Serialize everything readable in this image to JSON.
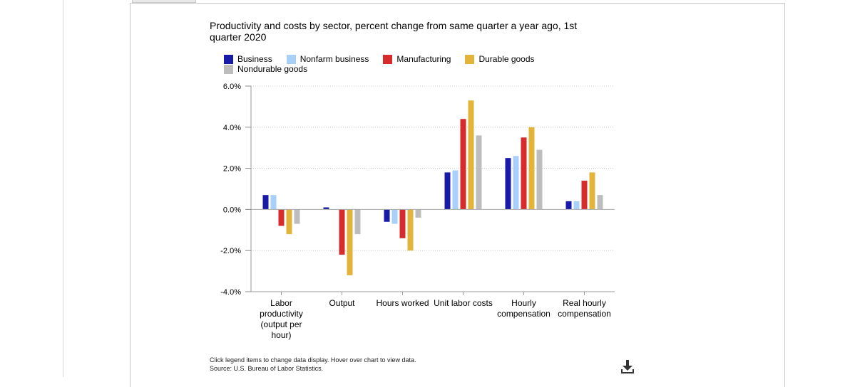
{
  "chart_data": {
    "type": "bar",
    "title": "Productivity and costs by sector, percent change from same quarter a year ago, 1st quarter 2020",
    "categories": [
      [
        "Labor",
        "productivity",
        "(output per",
        "hour)"
      ],
      [
        "Output"
      ],
      [
        "Hours worked"
      ],
      [
        "Unit labor costs"
      ],
      [
        "Hourly",
        "compensation"
      ],
      [
        "Real hourly",
        "compensation"
      ]
    ],
    "series": [
      {
        "name": "Business",
        "color": "#1a1aa8",
        "values": [
          0.7,
          0.1,
          -0.6,
          1.8,
          2.5,
          0.4
        ]
      },
      {
        "name": "Nonfarm business",
        "color": "#a8d0f8",
        "values": [
          0.7,
          0.0,
          -0.7,
          1.9,
          2.6,
          0.4
        ]
      },
      {
        "name": "Manufacturing",
        "color": "#d72c2c",
        "values": [
          -0.8,
          -2.2,
          -1.4,
          4.4,
          3.5,
          1.4
        ]
      },
      {
        "name": "Durable goods",
        "color": "#e2b53a",
        "values": [
          -1.2,
          -3.2,
          -2.0,
          5.3,
          4.0,
          1.8
        ]
      },
      {
        "name": "Nondurable goods",
        "color": "#bdbdbd",
        "values": [
          -0.7,
          -1.2,
          -0.4,
          3.6,
          2.9,
          0.7
        ]
      }
    ],
    "y_ticks": [
      "6.0%",
      "4.0%",
      "2.0%",
      "0.0%",
      "-2.0%",
      "-4.0%"
    ],
    "ylim": [
      -4,
      6
    ],
    "grid": true,
    "legend_position": "top"
  },
  "notes": {
    "line1": "Click legend items to change data display. Hover over chart to view data.",
    "line2": "Source: U.S. Bureau of Labor Statistics."
  },
  "download_icon": "download-icon"
}
